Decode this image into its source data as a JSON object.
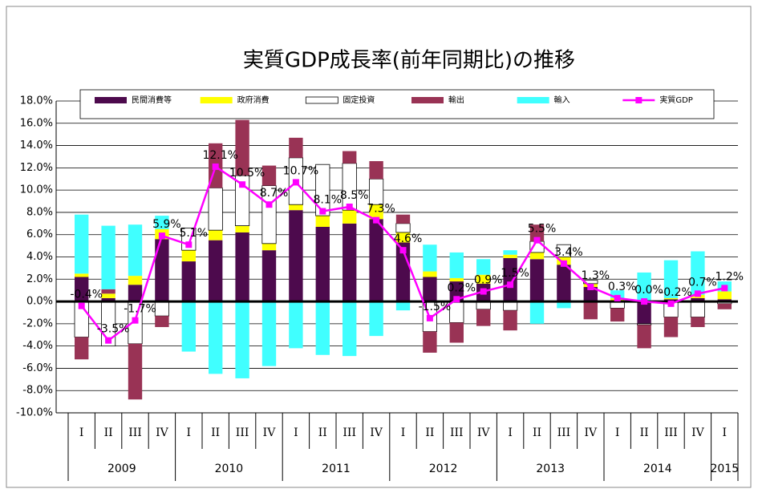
{
  "chart_data": {
    "type": "bar-line",
    "title": "実質GDP成長率(前年同期比)の推移",
    "categories": [
      "I",
      "II",
      "III",
      "IV",
      "I",
      "II",
      "III",
      "IV",
      "I",
      "II",
      "III",
      "IV",
      "I",
      "II",
      "III",
      "IV",
      "I",
      "II",
      "III",
      "IV",
      "I",
      "II",
      "III",
      "IV",
      "I"
    ],
    "years": [
      {
        "label": "2009",
        "count": 4
      },
      {
        "label": "2010",
        "count": 4
      },
      {
        "label": "2011",
        "count": 4
      },
      {
        "label": "2012",
        "count": 4
      },
      {
        "label": "2013",
        "count": 4
      },
      {
        "label": "2014",
        "count": 4
      },
      {
        "label": "2015",
        "count": 1
      }
    ],
    "series": [
      {
        "name": "民間消費等",
        "color": "#4d0a4d",
        "values": [
          2.2,
          0.3,
          1.5,
          5.6,
          3.6,
          5.5,
          6.2,
          4.6,
          8.2,
          6.7,
          7.0,
          7.4,
          5.3,
          2.2,
          1.8,
          1.6,
          3.9,
          3.8,
          3.3,
          1.3,
          0.1,
          -2.0,
          0.2,
          0.3,
          0.2
        ]
      },
      {
        "name": "政府消費",
        "color": "#ffff00",
        "values": [
          0.3,
          0.4,
          0.8,
          0.9,
          1.0,
          0.9,
          0.6,
          0.6,
          0.5,
          1.0,
          1.2,
          1.3,
          0.9,
          0.5,
          0.3,
          0.8,
          0.3,
          0.6,
          0.7,
          0.3,
          0.2,
          0.1,
          0.1,
          0.3,
          0.7
        ]
      },
      {
        "name": "固定投資",
        "color": "#ffffff",
        "values": [
          -3.2,
          -4.0,
          -3.8,
          -1.3,
          2.0,
          3.8,
          4.5,
          5.2,
          4.2,
          4.6,
          4.2,
          2.3,
          0.8,
          -2.7,
          -1.9,
          -0.7,
          -0.8,
          1.0,
          1.1,
          0.3,
          -0.6,
          -0.1,
          -1.4,
          -1.4,
          -0.2
        ]
      },
      {
        "name": "輸出",
        "color": "#993355",
        "values": [
          -2.0,
          0.4,
          -5.0,
          -1.0,
          0.0,
          4.0,
          5.0,
          1.8,
          1.8,
          0.0,
          1.1,
          1.6,
          0.8,
          -1.9,
          -1.8,
          -1.5,
          -1.8,
          1.5,
          0.0,
          -1.6,
          -1.2,
          -2.1,
          -1.8,
          -0.9,
          -0.5
        ]
      },
      {
        "name": "輸入",
        "color": "#40ffff",
        "values": [
          5.3,
          5.7,
          4.6,
          1.2,
          -4.5,
          -6.5,
          -6.9,
          -5.8,
          -4.2,
          -4.8,
          -4.9,
          -3.1,
          -0.8,
          2.4,
          2.3,
          1.4,
          0.4,
          -2.0,
          -0.6,
          0.0,
          0.7,
          2.5,
          3.4,
          3.9,
          0.9
        ]
      },
      {
        "name": "実質GDP",
        "color": "#ff00ff",
        "line": true,
        "values": [
          -0.4,
          -3.5,
          -1.7,
          5.9,
          5.1,
          12.1,
          10.5,
          8.7,
          10.7,
          8.1,
          8.5,
          7.3,
          4.6,
          -1.5,
          0.2,
          0.9,
          1.5,
          5.5,
          3.4,
          1.3,
          0.3,
          0.0,
          -0.2,
          0.7,
          1.2
        ],
        "value_labels": [
          "-0.4%",
          "-3.5%",
          "-1.7%",
          "5.9%",
          "5.1%",
          "12.1%",
          "10.5%",
          "8.7%",
          "10.7%",
          "8.1%",
          "8.5%",
          "7.3%",
          "4.6%",
          "-1.5%",
          "0.2%",
          "0.9%",
          "1.5%",
          "5.5%",
          "3.4%",
          "1.3%",
          "0.3%",
          "0.0%",
          "-0.2%",
          "0.7%",
          "1.2%"
        ]
      }
    ],
    "ylim": [
      -10,
      18
    ],
    "yticks": [
      {
        "value": -10,
        "label": "-10.0%"
      },
      {
        "value": -8,
        "label": "-8.0%"
      },
      {
        "value": -6,
        "label": "-6.0%"
      },
      {
        "value": -4,
        "label": "-4.0%"
      },
      {
        "value": -2,
        "label": "-2.0%"
      },
      {
        "value": 0,
        "label": "0.0%"
      },
      {
        "value": 2,
        "label": "2.0%"
      },
      {
        "value": 4,
        "label": "4.0%"
      },
      {
        "value": 6,
        "label": "6.0%"
      },
      {
        "value": 8,
        "label": "8.0%"
      },
      {
        "value": 10,
        "label": "10.0%"
      },
      {
        "value": 12,
        "label": "12.0%"
      },
      {
        "value": 14,
        "label": "14.0%"
      },
      {
        "value": 16,
        "label": "16.0%"
      },
      {
        "value": 18,
        "label": "18.0%"
      }
    ],
    "grid": true
  }
}
